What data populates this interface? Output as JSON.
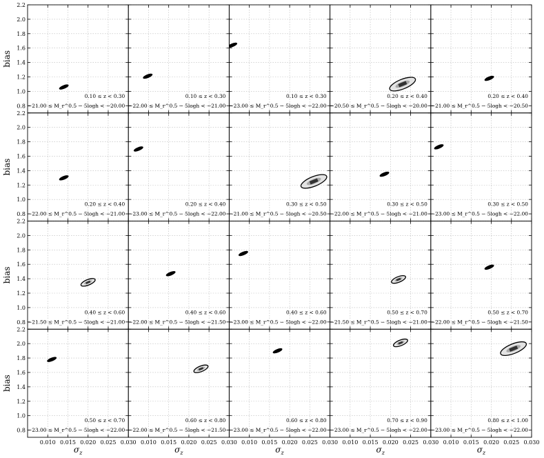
{
  "chart_data": {
    "type": "scatter",
    "xlabel": "σ_z",
    "ylabel": "bias",
    "xlim": [
      0.005,
      0.03
    ],
    "ylim": [
      0.7,
      2.2
    ],
    "xticks": [
      "0.010",
      "0.015",
      "0.020",
      "0.025",
      "0.030"
    ],
    "yticks": [
      "0.8",
      "1.0",
      "1.2",
      "1.4",
      "1.6",
      "1.8",
      "2.0",
      "2.2"
    ],
    "grid": true,
    "colors": {
      "contour": "#000000",
      "fill_outer": "#e3e3e3",
      "fill_mid": "#a9a9a9",
      "fill_core": "#333333",
      "grid": "#b8b8b8"
    },
    "panels": [
      {
        "z_range": "0.10 ≤ z < 0.30",
        "mag_range": "−21.00 ≤ M_r^0.5 − 5logh < −20.00",
        "sigma_z": 0.014,
        "bias": 1.06,
        "size": "small"
      },
      {
        "z_range": "0.10 ≤ z < 0.30",
        "mag_range": "−22.00 ≤ M_r^0.5 − 5logh < −21.00",
        "sigma_z": 0.0098,
        "bias": 1.21,
        "size": "small"
      },
      {
        "z_range": "0.10 ≤ z < 0.30",
        "mag_range": "−23.00 ≤ M_r^0.5 − 5logh < −22.00",
        "sigma_z": 0.0058,
        "bias": 1.64,
        "size": "small"
      },
      {
        "z_range": "0.20 ≤ z < 0.40",
        "mag_range": "−20.50 ≤ M_r^0.5 − 5logh < −20.00",
        "sigma_z": 0.023,
        "bias": 1.1,
        "size": "large"
      },
      {
        "z_range": "0.20 ≤ z < 0.40",
        "mag_range": "−21.00 ≤ M_r^0.5 − 5logh < −20.50",
        "sigma_z": 0.0195,
        "bias": 1.18,
        "size": "small"
      },
      {
        "z_range": "0.20 ≤ z < 0.40",
        "mag_range": "−22.00 ≤ M_r^0.5 − 5logh < −21.00",
        "sigma_z": 0.014,
        "bias": 1.3,
        "size": "small"
      },
      {
        "z_range": "0.20 ≤ z < 0.40",
        "mag_range": "−23.00 ≤ M_r^0.5 − 5logh < −22.00",
        "sigma_z": 0.0075,
        "bias": 1.7,
        "size": "small"
      },
      {
        "z_range": "0.30 ≤ z < 0.50",
        "mag_range": "−21.00 ≤ M_r^0.5 − 5logh < −20.50",
        "sigma_z": 0.026,
        "bias": 1.25,
        "size": "large"
      },
      {
        "z_range": "0.30 ≤ z < 0.50",
        "mag_range": "−22.00 ≤ M_r^0.5 − 5logh < −21.00",
        "sigma_z": 0.0185,
        "bias": 1.35,
        "size": "small"
      },
      {
        "z_range": "0.30 ≤ z < 0.50",
        "mag_range": "−23.00 ≤ M_r^0.5 − 5logh < −22.00",
        "sigma_z": 0.007,
        "bias": 1.73,
        "size": "small"
      },
      {
        "z_range": "0.40 ≤ z < 0.60",
        "mag_range": "−21.50 ≤ M_r^0.5 − 5logh < −21.00",
        "sigma_z": 0.02,
        "bias": 1.35,
        "size": "medium"
      },
      {
        "z_range": "0.40 ≤ z < 0.60",
        "mag_range": "−22.00 ≤ M_r^0.5 − 5logh < −21.50",
        "sigma_z": 0.0155,
        "bias": 1.47,
        "size": "small"
      },
      {
        "z_range": "0.40 ≤ z < 0.60",
        "mag_range": "−23.00 ≤ M_r^0.5 − 5logh < −22.00",
        "sigma_z": 0.0085,
        "bias": 1.75,
        "size": "small"
      },
      {
        "z_range": "0.50 ≤ z < 0.70",
        "mag_range": "−21.50 ≤ M_r^0.5 − 5logh < −21.00",
        "sigma_z": 0.022,
        "bias": 1.39,
        "size": "medium"
      },
      {
        "z_range": "0.50 ≤ z < 0.70",
        "mag_range": "−22.00 ≤ M_r^0.5 − 5logh < −21.50",
        "sigma_z": 0.0195,
        "bias": 1.56,
        "size": "small"
      },
      {
        "z_range": "0.50 ≤ z < 0.70",
        "mag_range": "−23.00 ≤ M_r^0.5 − 5logh < −22.00",
        "sigma_z": 0.011,
        "bias": 1.78,
        "size": "small"
      },
      {
        "z_range": "0.60 ≤ z < 0.80",
        "mag_range": "−22.00 ≤ M_r^0.5 − 5logh < −21.50",
        "sigma_z": 0.023,
        "bias": 1.65,
        "size": "medium"
      },
      {
        "z_range": "0.60 ≤ z < 0.80",
        "mag_range": "−23.00 ≤ M_r^0.5 − 5logh < −22.00",
        "sigma_z": 0.017,
        "bias": 1.9,
        "size": "small"
      },
      {
        "z_range": "0.70 ≤ z < 0.90",
        "mag_range": "−23.00 ≤ M_r^0.5 − 5logh < −22.00",
        "sigma_z": 0.0225,
        "bias": 2.01,
        "size": "medium"
      },
      {
        "z_range": "0.80 ≤ z < 1.00",
        "mag_range": "−23.00 ≤ M_r^0.5 − 5logh < −22.00",
        "sigma_z": 0.0255,
        "bias": 1.93,
        "size": "large"
      }
    ]
  }
}
